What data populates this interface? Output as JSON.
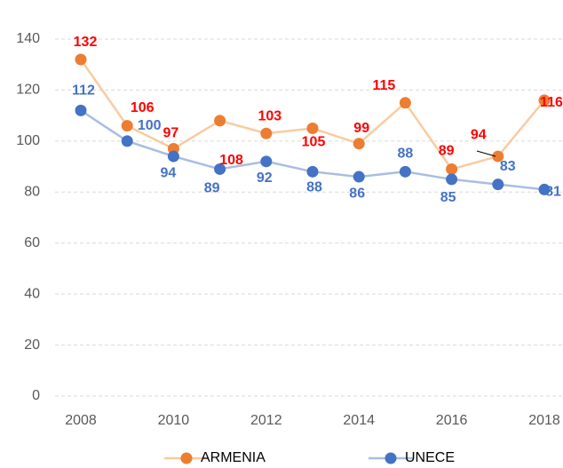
{
  "chart_data": {
    "type": "line",
    "x": [
      2008,
      2009,
      2010,
      2011,
      2012,
      2013,
      2014,
      2015,
      2016,
      2017,
      2018
    ],
    "series": [
      {
        "name": "ARMENIA",
        "color": "#ed7d31",
        "line_color": "#f8cba0",
        "label_color": "#ff0000",
        "values": [
          132,
          106,
          97,
          108,
          103,
          105,
          99,
          115,
          89,
          94,
          116
        ]
      },
      {
        "name": "UNECE",
        "color": "#4472c4",
        "line_color": "#a9bde3",
        "label_color": "#4472c4",
        "values": [
          112,
          100,
          94,
          89,
          92,
          88,
          86,
          88,
          85,
          83,
          81
        ]
      }
    ],
    "xlim": [
      2008,
      2018
    ],
    "xticks": [
      2008,
      2010,
      2012,
      2014,
      2016,
      2018
    ],
    "ylim": [
      0,
      140
    ],
    "yticks": [
      0,
      20,
      40,
      60,
      80,
      100,
      120,
      140
    ],
    "grid": true,
    "legend": "bottom"
  }
}
